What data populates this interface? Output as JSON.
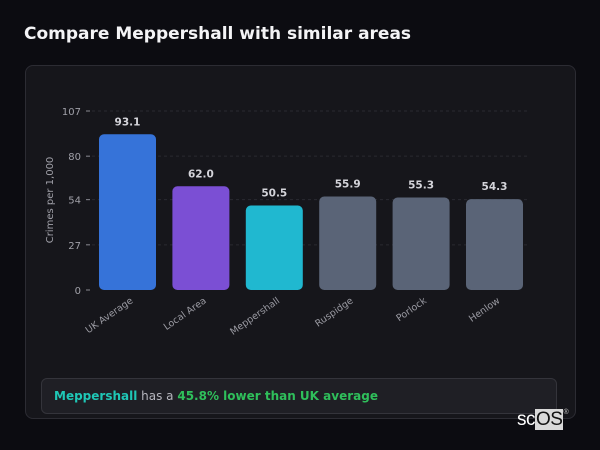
{
  "title": "Compare Meppershall with similar areas",
  "chart_data": {
    "type": "bar",
    "categories": [
      "UK Average",
      "Local Area",
      "Meppershall",
      "Ruspidge",
      "Porlock",
      "Henlow"
    ],
    "values": [
      93.1,
      62.0,
      50.5,
      55.9,
      55.3,
      54.3
    ],
    "value_labels": [
      "93.1",
      "62.0",
      "50.5",
      "55.9",
      "55.3",
      "54.3"
    ],
    "colors": [
      "#3673d9",
      "#7b4fd4",
      "#20b8d0",
      "#5a6477",
      "#5a6477",
      "#5a6477"
    ],
    "ylabel": "Crimes per 1,000",
    "xlabel": "",
    "yticks": [
      0,
      27,
      54,
      80,
      107
    ],
    "ylim": [
      0,
      107
    ],
    "grid": true
  },
  "summary": {
    "area": "Meppershall",
    "middle": " has a ",
    "comparison": "45.8% lower than UK average"
  },
  "logo": {
    "sc": "sc",
    "os": "OS",
    "mark": "®"
  }
}
